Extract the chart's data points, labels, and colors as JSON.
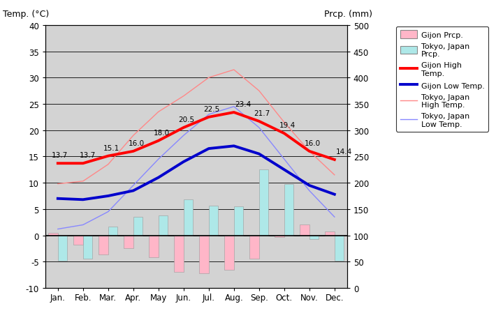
{
  "months": [
    "Jan.",
    "Feb.",
    "Mar.",
    "Apr.",
    "May",
    "Jun.",
    "Jul.",
    "Aug.",
    "Sep.",
    "Oct.",
    "Nov.",
    "Dec."
  ],
  "gijon_high_temp": [
    13.7,
    13.7,
    15.1,
    16.0,
    18.0,
    20.5,
    22.5,
    23.4,
    21.7,
    19.4,
    16.0,
    14.4
  ],
  "gijon_low_temp": [
    7.0,
    6.8,
    7.5,
    8.5,
    11.0,
    14.0,
    16.5,
    17.0,
    15.5,
    12.5,
    9.5,
    7.8
  ],
  "tokyo_high_temp": [
    9.8,
    10.3,
    13.5,
    19.0,
    23.5,
    26.5,
    30.0,
    31.5,
    27.5,
    21.5,
    16.0,
    11.5
  ],
  "tokyo_low_temp": [
    1.2,
    2.0,
    4.5,
    9.5,
    14.5,
    19.0,
    23.0,
    24.5,
    20.5,
    14.5,
    8.5,
    3.5
  ],
  "gijon_prcp_mm": [
    105,
    82,
    63,
    76,
    58,
    30,
    28,
    35,
    56,
    97,
    120,
    108
  ],
  "tokyo_prcp_mm": [
    52,
    56,
    117,
    135,
    138,
    168,
    156,
    155,
    225,
    197,
    93,
    52
  ],
  "gijon_high_color": "#ff0000",
  "gijon_low_color": "#0000cc",
  "tokyo_high_color": "#ff8888",
  "tokyo_low_color": "#8888ff",
  "gijon_prcp_color": "#ffb6c8",
  "tokyo_prcp_color": "#aee8e8",
  "bg_color": "#d3d3d3",
  "ylabel_left": "Temp. (°C)",
  "ylabel_right": "Prcp. (mm)",
  "ylim_left": [
    -10,
    40
  ],
  "ylim_right": [
    0,
    500
  ]
}
